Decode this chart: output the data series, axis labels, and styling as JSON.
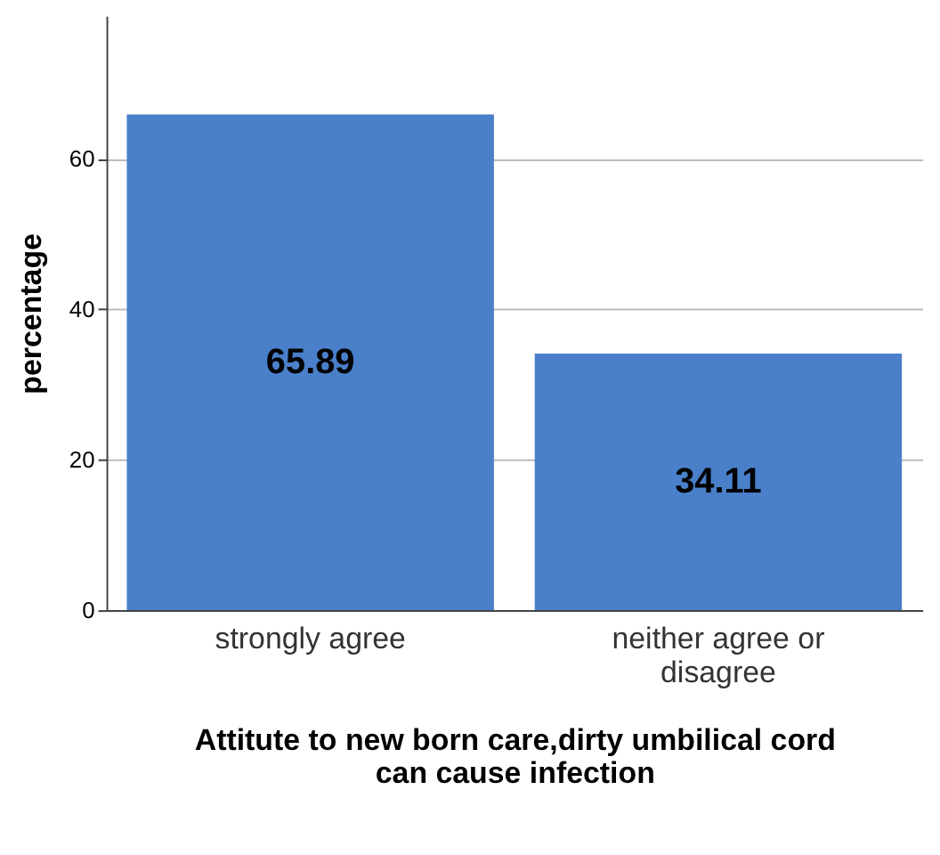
{
  "chart_data": {
    "type": "bar",
    "xlabel": "Attitute to new born care,dirty umbilical cord can cause infection",
    "ylabel": "percentage",
    "categories": [
      "strongly agree",
      "neither agree or disagree"
    ],
    "values": [
      65.89,
      34.11
    ],
    "color": "#4a7fc9",
    "data_labels": true,
    "ylim": [
      0,
      79
    ],
    "yticks": [
      0,
      20,
      40,
      60
    ],
    "grid": "y"
  }
}
